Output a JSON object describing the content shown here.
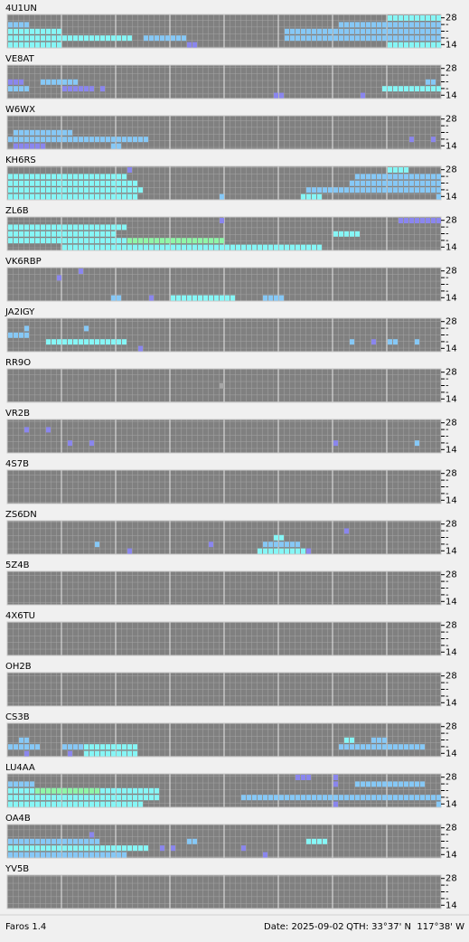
{
  "band_labels": [
    "28",
    "-",
    "-",
    "-",
    "14"
  ],
  "level_colors": [
    "#a6a6a6",
    "#8a86ee",
    "#86c8f6",
    "#86f6f6",
    "#8ef6a8"
  ],
  "beacons": [
    {
      "call": "4U1UN",
      "spans": [
        [
          0,
          70,
          10,
          3
        ],
        [
          1,
          0,
          4,
          2
        ],
        [
          1,
          61,
          19,
          2
        ],
        [
          2,
          0,
          10,
          3
        ],
        [
          2,
          51,
          29,
          2
        ],
        [
          3,
          0,
          23,
          3
        ],
        [
          3,
          25,
          8,
          2
        ],
        [
          3,
          51,
          29,
          2
        ],
        [
          4,
          0,
          10,
          3
        ],
        [
          4,
          33,
          2,
          1
        ],
        [
          4,
          70,
          10,
          3
        ]
      ]
    },
    {
      "call": "VE8AT",
      "spans": [
        [
          2,
          0,
          3,
          1
        ],
        [
          2,
          6,
          7,
          2
        ],
        [
          2,
          77,
          2,
          2
        ],
        [
          3,
          0,
          4,
          2
        ],
        [
          3,
          10,
          6,
          1
        ],
        [
          3,
          17,
          1,
          1
        ],
        [
          3,
          69,
          11,
          3
        ],
        [
          4,
          49,
          2,
          1
        ],
        [
          4,
          65,
          1,
          1
        ]
      ]
    },
    {
      "call": "W6WX",
      "spans": [
        [
          2,
          1,
          11,
          2
        ],
        [
          3,
          0,
          26,
          2
        ],
        [
          3,
          74,
          1,
          1
        ],
        [
          3,
          78,
          1,
          1
        ],
        [
          4,
          1,
          6,
          1
        ],
        [
          4,
          19,
          2,
          2
        ]
      ]
    },
    {
      "call": "KH6RS",
      "spans": [
        [
          0,
          22,
          1,
          1
        ],
        [
          0,
          70,
          4,
          3
        ],
        [
          1,
          0,
          22,
          3
        ],
        [
          1,
          64,
          16,
          2
        ],
        [
          2,
          0,
          24,
          3
        ],
        [
          2,
          63,
          17,
          2
        ],
        [
          3,
          0,
          25,
          3
        ],
        [
          3,
          55,
          25,
          2
        ],
        [
          4,
          0,
          24,
          3
        ],
        [
          4,
          39,
          1,
          2
        ],
        [
          4,
          54,
          4,
          3
        ],
        [
          4,
          79,
          1,
          2
        ]
      ]
    },
    {
      "call": "ZL6B",
      "spans": [
        [
          0,
          39,
          1,
          1
        ],
        [
          0,
          72,
          8,
          1
        ],
        [
          1,
          0,
          22,
          3
        ],
        [
          2,
          0,
          20,
          3
        ],
        [
          2,
          60,
          5,
          3
        ],
        [
          3,
          0,
          22,
          3
        ],
        [
          3,
          22,
          18,
          4
        ],
        [
          4,
          10,
          48,
          3
        ]
      ]
    },
    {
      "call": "VK6RBP",
      "spans": [
        [
          0,
          13,
          1,
          1
        ],
        [
          1,
          9,
          1,
          1
        ],
        [
          4,
          19,
          2,
          2
        ],
        [
          4,
          26,
          1,
          1
        ],
        [
          4,
          30,
          12,
          3
        ],
        [
          4,
          47,
          4,
          2
        ]
      ]
    },
    {
      "call": "JA2IGY",
      "spans": [
        [
          1,
          3,
          1,
          2
        ],
        [
          1,
          14,
          1,
          2
        ],
        [
          2,
          0,
          4,
          2
        ],
        [
          3,
          7,
          15,
          3
        ],
        [
          3,
          63,
          1,
          2
        ],
        [
          3,
          67,
          1,
          1
        ],
        [
          3,
          70,
          2,
          2
        ],
        [
          3,
          75,
          1,
          2
        ],
        [
          4,
          24,
          1,
          1
        ]
      ]
    },
    {
      "call": "RR9O",
      "spans": [
        [
          2,
          39,
          1,
          0
        ]
      ]
    },
    {
      "call": "VR2B",
      "spans": [
        [
          1,
          3,
          1,
          1
        ],
        [
          1,
          7,
          1,
          1
        ],
        [
          3,
          11,
          1,
          1
        ],
        [
          3,
          15,
          1,
          1
        ],
        [
          3,
          60,
          1,
          1
        ],
        [
          3,
          75,
          1,
          2
        ]
      ]
    },
    {
      "call": "4S7B",
      "spans": []
    },
    {
      "call": "ZS6DN",
      "spans": [
        [
          1,
          62,
          1,
          1
        ],
        [
          2,
          49,
          2,
          3
        ],
        [
          3,
          16,
          1,
          2
        ],
        [
          3,
          37,
          1,
          1
        ],
        [
          3,
          47,
          7,
          2
        ],
        [
          4,
          22,
          1,
          1
        ],
        [
          4,
          46,
          9,
          3
        ],
        [
          4,
          55,
          1,
          1
        ]
      ]
    },
    {
      "call": "5Z4B",
      "spans": []
    },
    {
      "call": "4X6TU",
      "spans": []
    },
    {
      "call": "OH2B",
      "spans": []
    },
    {
      "call": "CS3B",
      "spans": [
        [
          2,
          2,
          2,
          2
        ],
        [
          2,
          62,
          2,
          3
        ],
        [
          2,
          67,
          3,
          2
        ],
        [
          3,
          0,
          6,
          2
        ],
        [
          3,
          10,
          4,
          2
        ],
        [
          3,
          14,
          10,
          3
        ],
        [
          3,
          61,
          16,
          2
        ],
        [
          4,
          3,
          1,
          1
        ],
        [
          4,
          11,
          1,
          1
        ],
        [
          4,
          14,
          10,
          3
        ]
      ]
    },
    {
      "call": "LU4AA",
      "spans": [
        [
          0,
          53,
          3,
          1
        ],
        [
          0,
          60,
          1,
          1
        ],
        [
          1,
          0,
          5,
          2
        ],
        [
          1,
          60,
          1,
          1
        ],
        [
          1,
          64,
          13,
          2
        ],
        [
          2,
          0,
          28,
          3
        ],
        [
          2,
          5,
          12,
          4
        ],
        [
          3,
          0,
          28,
          3
        ],
        [
          3,
          43,
          37,
          2
        ],
        [
          4,
          0,
          25,
          3
        ],
        [
          4,
          60,
          1,
          1
        ],
        [
          4,
          79,
          1,
          2
        ]
      ]
    },
    {
      "call": "OA4B",
      "spans": [
        [
          1,
          15,
          1,
          1
        ],
        [
          2,
          0,
          17,
          2
        ],
        [
          2,
          33,
          2,
          2
        ],
        [
          2,
          55,
          4,
          3
        ],
        [
          3,
          0,
          26,
          3
        ],
        [
          3,
          28,
          1,
          1
        ],
        [
          3,
          30,
          1,
          1
        ],
        [
          3,
          43,
          1,
          1
        ],
        [
          4,
          0,
          22,
          2
        ],
        [
          4,
          47,
          1,
          1
        ]
      ]
    },
    {
      "call": "YV5B",
      "spans": []
    }
  ],
  "status": {
    "app": "Faros 1.4",
    "date": "Date: 2025-09-02",
    "qth": "QTH: 33°37' N  117°38' W"
  }
}
